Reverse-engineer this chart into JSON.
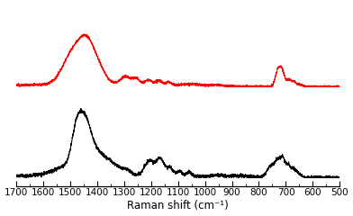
{
  "xlabel": "Raman shift (cm⁻¹)",
  "xlim": [
    1700,
    500
  ],
  "xticks": [
    1700,
    1600,
    1500,
    1400,
    1300,
    1200,
    1100,
    1000,
    900,
    800,
    700,
    600,
    500
  ],
  "red_color": "#ff0000",
  "black_color": "#000000",
  "background": "#ffffff",
  "linewidth": 0.75,
  "figsize": [
    3.92,
    2.4
  ],
  "dpi": 100
}
